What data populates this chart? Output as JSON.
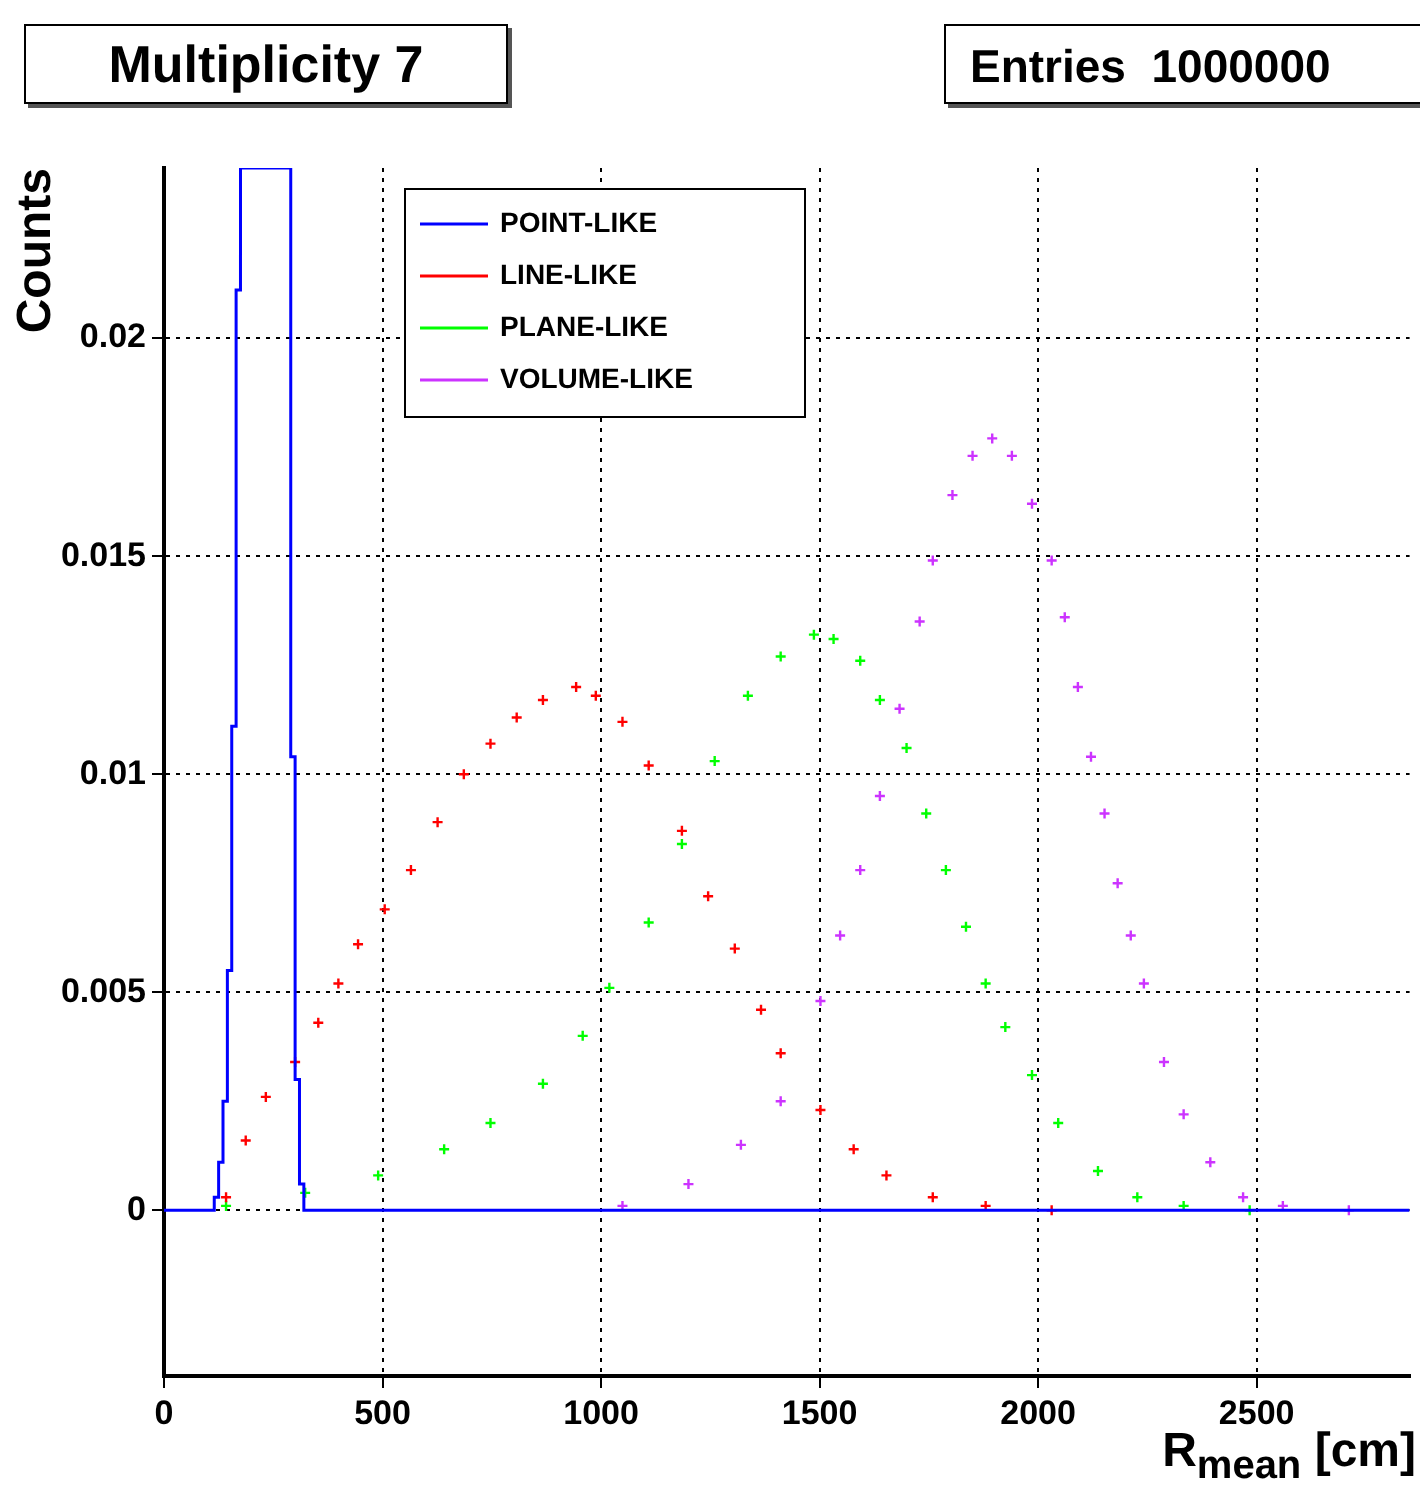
{
  "chart_data": {
    "type": "scatter",
    "title": "Multiplicity 7",
    "annotations": [
      "Entries  1000000"
    ],
    "xlabel": "R$_{mean}$ [cm]",
    "ylabel": "Counts",
    "xlim": [
      0,
      2850
    ],
    "ylim": [
      -0.0038,
      0.0239
    ],
    "xticks": [
      0,
      500,
      1000,
      1500,
      2000,
      2500
    ],
    "yticks": [
      0,
      0.005,
      0.01,
      0.015,
      0.02
    ],
    "grid": true,
    "legend": "top left",
    "marker": "cross",
    "series": [
      {
        "name": "POINT-LIKE",
        "type": "step",
        "marker": "none",
        "color": "#0000ff",
        "x": [
          0,
          115,
          125,
          135,
          145,
          155,
          165,
          175,
          290,
          300,
          310,
          320,
          2850
        ],
        "values": [
          0,
          0.0003,
          0.0011,
          0.0025,
          0.0055,
          0.0111,
          0.0211,
          0.0239,
          0.0104,
          0.003,
          0.0006,
          0,
          0
        ]
      },
      {
        "name": "LINE-LIKE",
        "color": "#ff0000",
        "x": [
          142,
          187,
          233,
          300,
          353,
          399,
          444,
          505,
          565,
          626,
          686,
          747,
          807,
          867,
          943,
          988,
          1049,
          1109,
          1185,
          1245,
          1306,
          1366,
          1411,
          1502,
          1578,
          1653,
          1759,
          1880,
          2031
        ],
        "values": [
          0.0003,
          0.0016,
          0.0026,
          0.0034,
          0.0043,
          0.0052,
          0.0061,
          0.0069,
          0.0078,
          0.0089,
          0.01,
          0.0107,
          0.0113,
          0.0117,
          0.012,
          0.0118,
          0.0112,
          0.0102,
          0.0087,
          0.0072,
          0.006,
          0.0046,
          0.0036,
          0.0023,
          0.0014,
          0.0008,
          0.0003,
          0.0001,
          0
        ]
      },
      {
        "name": "PLANE-LIKE",
        "color": "#00ff00",
        "x": [
          142,
          323,
          490,
          641,
          747,
          867,
          958,
          1019,
          1109,
          1185,
          1260,
          1336,
          1411,
          1487,
          1532,
          1593,
          1638,
          1699,
          1744,
          1789,
          1835,
          1880,
          1925,
          1986,
          2046,
          2137,
          2227,
          2333,
          2484
        ],
        "values": [
          0.0001,
          0.0004,
          0.0008,
          0.0014,
          0.002,
          0.0029,
          0.004,
          0.0051,
          0.0066,
          0.0084,
          0.0103,
          0.0118,
          0.0127,
          0.0132,
          0.0131,
          0.0126,
          0.0117,
          0.0106,
          0.0091,
          0.0078,
          0.0065,
          0.0052,
          0.0042,
          0.0031,
          0.002,
          0.0009,
          0.0003,
          0.0001,
          0
        ]
      },
      {
        "name": "VOLUME-LIKE",
        "color": "#cc33ff",
        "x": [
          1049,
          1200,
          1320,
          1411,
          1502,
          1547,
          1593,
          1638,
          1683,
          1729,
          1759,
          1804,
          1850,
          1895,
          1940,
          1986,
          2031,
          2061,
          2091,
          2121,
          2152,
          2182,
          2212,
          2242,
          2288,
          2333,
          2394,
          2469,
          2560,
          2711
        ],
        "values": [
          0.0001,
          0.0006,
          0.0015,
          0.0025,
          0.0048,
          0.0063,
          0.0078,
          0.0095,
          0.0115,
          0.0135,
          0.0149,
          0.0164,
          0.0173,
          0.0177,
          0.0173,
          0.0162,
          0.0149,
          0.0136,
          0.012,
          0.0104,
          0.0091,
          0.0075,
          0.0063,
          0.0052,
          0.0034,
          0.0022,
          0.0011,
          0.0003,
          0.0001,
          0
        ]
      }
    ]
  }
}
